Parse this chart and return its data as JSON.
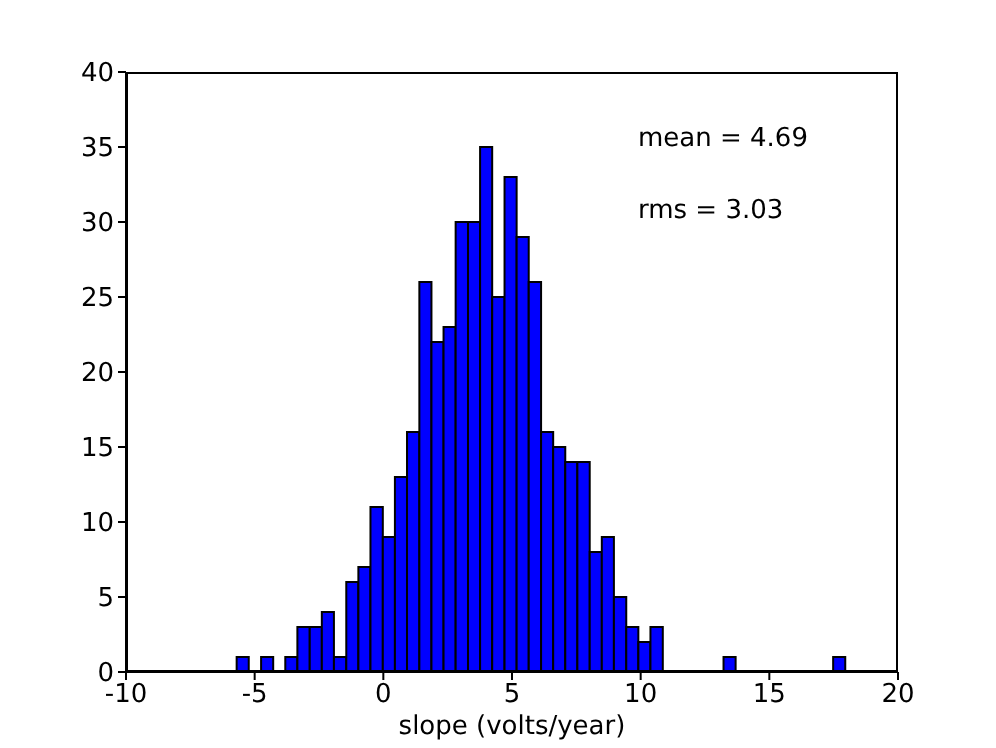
{
  "chart_data": {
    "type": "histogram",
    "xlabel": "slope (volts/year)",
    "bins": [
      -5.7,
      -5.23,
      -4.75,
      -4.28,
      -3.81,
      -3.34,
      -2.86,
      -2.39,
      -1.92,
      -1.44,
      -0.97,
      -0.5,
      -0.02,
      0.45,
      0.92,
      1.4,
      1.87,
      2.34,
      2.81,
      3.29,
      3.76,
      4.23,
      4.71,
      5.18,
      5.65,
      6.13,
      6.6,
      7.07,
      7.54,
      8.02,
      8.49,
      8.96,
      9.44,
      9.91,
      10.38,
      10.86,
      11.33,
      11.8,
      12.27,
      12.75,
      13.22,
      13.69,
      14.17,
      14.64,
      15.11,
      15.59,
      16.06,
      16.53,
      17.0,
      17.48,
      17.95
    ],
    "values": [
      1,
      0,
      1,
      0,
      1,
      3,
      3,
      4,
      1,
      6,
      7,
      11,
      9,
      13,
      16,
      26,
      22,
      23,
      30,
      30,
      35,
      25,
      33,
      29,
      26,
      16,
      15,
      14,
      14,
      8,
      9,
      5,
      3,
      2,
      3,
      0,
      0,
      0,
      0,
      0,
      1,
      0,
      0,
      0,
      0,
      0,
      0,
      0,
      0,
      1
    ],
    "color": "#0000ff",
    "xlim": [
      -10,
      20
    ],
    "xticks": [
      -10,
      -5,
      0,
      5,
      10,
      15,
      20
    ],
    "ylim": [
      0,
      40
    ],
    "yticks": [
      0,
      5,
      10,
      15,
      20,
      25,
      30,
      35,
      40
    ],
    "grid": false,
    "annotations": [
      "mean = 4.69",
      "rms = 3.03"
    ]
  }
}
